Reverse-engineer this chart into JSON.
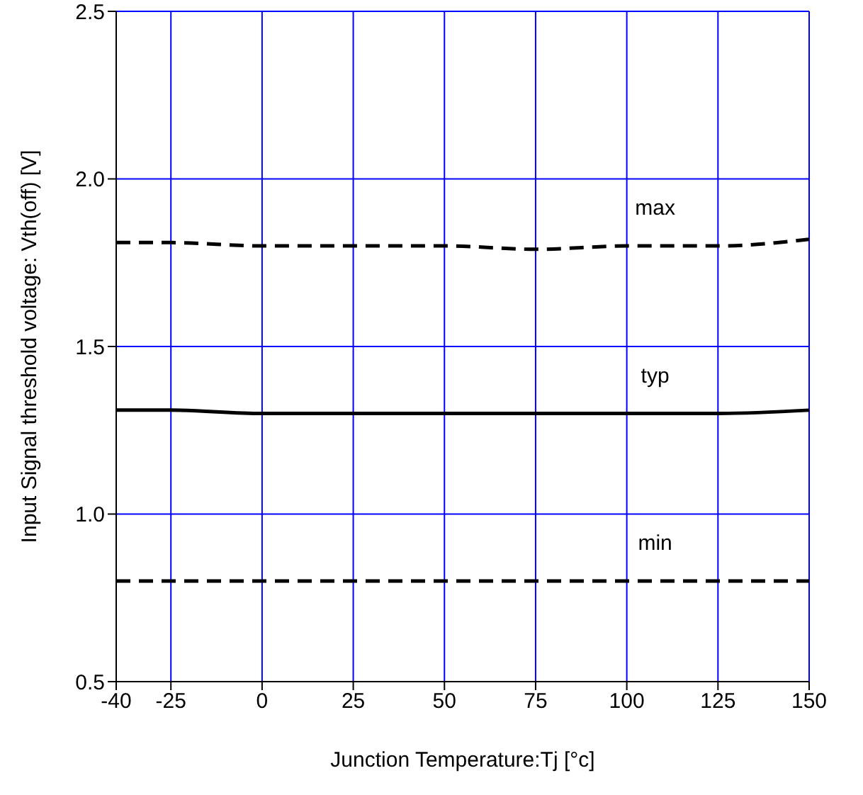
{
  "chart_data": {
    "type": "line",
    "xlabel": "Junction Temperature:Tj [°c]",
    "ylabel": "Input Signal threshold voltage: Vth(off) [V]",
    "x": [
      -40,
      -25,
      0,
      25,
      50,
      75,
      100,
      125,
      150
    ],
    "series": [
      {
        "name": "max",
        "color": "#000000",
        "line_style": "dashed",
        "values": [
          1.81,
          1.81,
          1.8,
          1.8,
          1.8,
          1.79,
          1.8,
          1.8,
          1.82
        ]
      },
      {
        "name": "typ",
        "color": "#000000",
        "line_style": "solid",
        "values": [
          1.31,
          1.31,
          1.3,
          1.3,
          1.3,
          1.3,
          1.3,
          1.3,
          1.31
        ]
      },
      {
        "name": "min",
        "color": "#000000",
        "line_style": "dashed",
        "values": [
          0.8,
          0.8,
          0.8,
          0.8,
          0.8,
          0.8,
          0.8,
          0.8,
          0.8
        ]
      }
    ],
    "xlim": [
      -40,
      150
    ],
    "xticks": [
      -40,
      -25,
      0,
      25,
      50,
      75,
      100,
      125,
      150
    ],
    "ylim": [
      0.5,
      2.5
    ],
    "yticks": [
      {
        "value": 0.5,
        "label": "0.5"
      },
      {
        "value": 1,
        "label": "1.0"
      },
      {
        "value": 1.5,
        "label": "1.5"
      },
      {
        "value": 2,
        "label": "2.0"
      },
      {
        "value": 2.5,
        "label": "2.5"
      }
    ],
    "grid": true,
    "marker": "none"
  }
}
